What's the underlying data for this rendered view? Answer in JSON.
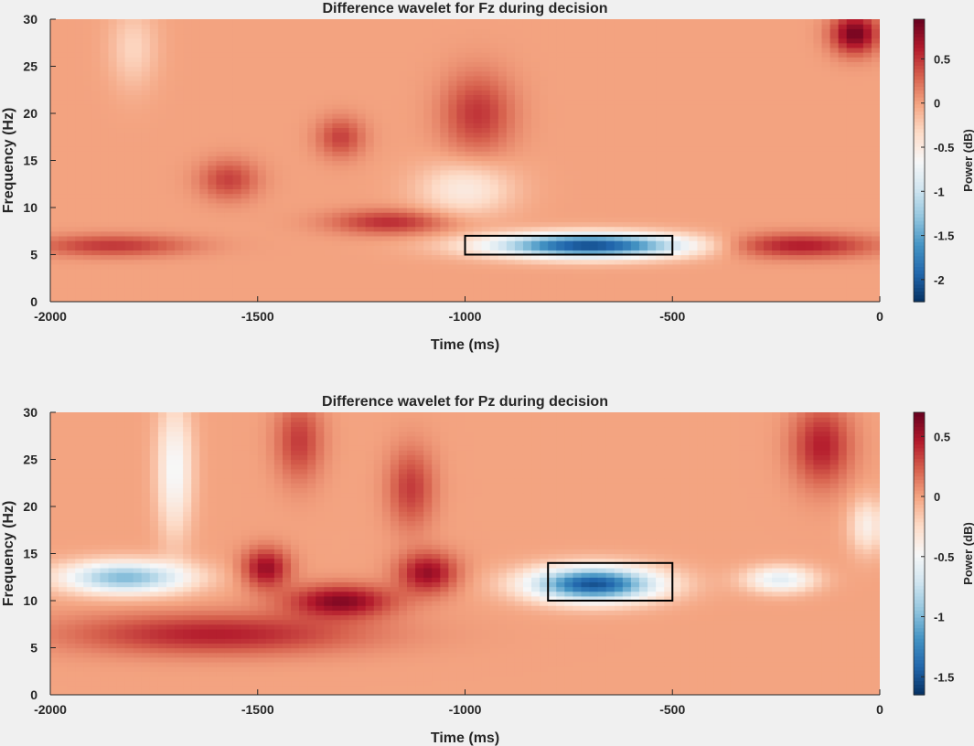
{
  "colors": {
    "background": "#f0f0f0",
    "colormap": [
      "#053061",
      "#2166ac",
      "#4393c3",
      "#92c5de",
      "#d1e5f0",
      "#f7f7f7",
      "#fddbc7",
      "#f4a582",
      "#d6604d",
      "#b2182b",
      "#67001f"
    ]
  },
  "chart_data": [
    {
      "type": "heatmap",
      "title": "Difference wavelet for Fz during decision",
      "xlabel": "Time (ms)",
      "ylabel": "Frequency (Hz)",
      "xlim": [
        -2000,
        0
      ],
      "ylim": [
        0,
        30
      ],
      "xticks": [
        "-2000",
        "-1500",
        "-1000",
        "-500",
        "0"
      ],
      "yticks": [
        "0",
        "5",
        "10",
        "15",
        "20",
        "25",
        "30"
      ],
      "colorbar": {
        "label": "Power (dB)",
        "clim": [
          -2.25,
          0.95
        ],
        "ticks": [
          "0.5",
          "0",
          "-0.5",
          "-1",
          "-1.5",
          "-2"
        ],
        "tick_values": [
          0.5,
          0,
          -0.5,
          -1,
          -1.5,
          -2
        ]
      },
      "roi_box": {
        "time_ms": [
          -1000,
          -500
        ],
        "freq_hz": [
          5,
          7
        ]
      },
      "features": [
        {
          "time_ms": -700,
          "freq_hz": 6,
          "power_db": -2.1,
          "sigma_time_ms": 170,
          "sigma_freq_hz": 0.9
        },
        {
          "time_ms": -1850,
          "freq_hz": 6,
          "power_db": 0.5,
          "sigma_time_ms": 130,
          "sigma_freq_hz": 0.8
        },
        {
          "time_ms": -200,
          "freq_hz": 6,
          "power_db": 0.65,
          "sigma_time_ms": 130,
          "sigma_freq_hz": 0.9
        },
        {
          "time_ms": -1180,
          "freq_hz": 8.5,
          "power_db": 0.55,
          "sigma_time_ms": 100,
          "sigma_freq_hz": 0.9
        },
        {
          "time_ms": -1570,
          "freq_hz": 13,
          "power_db": 0.45,
          "sigma_time_ms": 50,
          "sigma_freq_hz": 1.5
        },
        {
          "time_ms": -1000,
          "freq_hz": 12,
          "power_db": -0.5,
          "sigma_time_ms": 80,
          "sigma_freq_hz": 2
        },
        {
          "time_ms": -970,
          "freq_hz": 20,
          "power_db": 0.5,
          "sigma_time_ms": 60,
          "sigma_freq_hz": 3
        },
        {
          "time_ms": -60,
          "freq_hz": 28.5,
          "power_db": 0.9,
          "sigma_time_ms": 40,
          "sigma_freq_hz": 1.5
        },
        {
          "time_ms": -1300,
          "freq_hz": 17.5,
          "power_db": 0.45,
          "sigma_time_ms": 40,
          "sigma_freq_hz": 1.5
        },
        {
          "time_ms": -1800,
          "freq_hz": 27,
          "power_db": -0.3,
          "sigma_time_ms": 40,
          "sigma_freq_hz": 3
        }
      ]
    },
    {
      "type": "heatmap",
      "title": "Difference wavelet for Pz during decision",
      "xlabel": "Time (ms)",
      "ylabel": "Frequency (Hz)",
      "xlim": [
        -2000,
        0
      ],
      "ylim": [
        0,
        30
      ],
      "xticks": [
        "-2000",
        "-1500",
        "-1000",
        "-500",
        "0"
      ],
      "yticks": [
        "0",
        "5",
        "10",
        "15",
        "20",
        "25",
        "30"
      ],
      "colorbar": {
        "label": "Power (dB)",
        "clim": [
          -1.65,
          0.7
        ],
        "ticks": [
          "0.5",
          "0",
          "-0.5",
          "-1",
          "-1.5"
        ],
        "tick_values": [
          0.5,
          0,
          -0.5,
          -1,
          -1.5
        ]
      },
      "roi_box": {
        "time_ms": [
          -800,
          -500
        ],
        "freq_hz": [
          10,
          14
        ]
      },
      "features": [
        {
          "time_ms": -690,
          "freq_hz": 11.8,
          "power_db": -1.5,
          "sigma_time_ms": 110,
          "sigma_freq_hz": 1.3
        },
        {
          "time_ms": -1820,
          "freq_hz": 12.5,
          "power_db": -1.0,
          "sigma_time_ms": 110,
          "sigma_freq_hz": 1.2
        },
        {
          "time_ms": -240,
          "freq_hz": 12.3,
          "power_db": -0.6,
          "sigma_time_ms": 60,
          "sigma_freq_hz": 1.0
        },
        {
          "time_ms": -1480,
          "freq_hz": 13.5,
          "power_db": 0.55,
          "sigma_time_ms": 40,
          "sigma_freq_hz": 1.5
        },
        {
          "time_ms": -1300,
          "freq_hz": 10,
          "power_db": 0.6,
          "sigma_time_ms": 90,
          "sigma_freq_hz": 1.2
        },
        {
          "time_ms": -1090,
          "freq_hz": 13,
          "power_db": 0.55,
          "sigma_time_ms": 50,
          "sigma_freq_hz": 1.5
        },
        {
          "time_ms": -1600,
          "freq_hz": 6.5,
          "power_db": 0.45,
          "sigma_time_ms": 250,
          "sigma_freq_hz": 1.5
        },
        {
          "time_ms": -1700,
          "freq_hz": 24,
          "power_db": -0.5,
          "sigma_time_ms": 30,
          "sigma_freq_hz": 5
        },
        {
          "time_ms": -30,
          "freq_hz": 18,
          "power_db": -0.4,
          "sigma_time_ms": 30,
          "sigma_freq_hz": 2
        },
        {
          "time_ms": -140,
          "freq_hz": 26.5,
          "power_db": 0.45,
          "sigma_time_ms": 50,
          "sigma_freq_hz": 3
        },
        {
          "time_ms": -1130,
          "freq_hz": 22,
          "power_db": 0.35,
          "sigma_time_ms": 40,
          "sigma_freq_hz": 3
        },
        {
          "time_ms": -1400,
          "freq_hz": 27,
          "power_db": 0.35,
          "sigma_time_ms": 40,
          "sigma_freq_hz": 3
        }
      ]
    }
  ]
}
